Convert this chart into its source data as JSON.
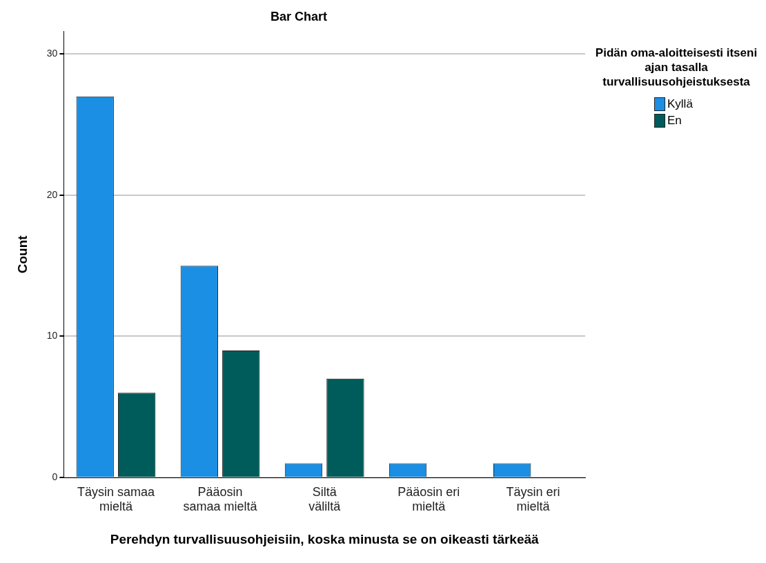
{
  "chart_data": {
    "type": "bar",
    "title": "Bar Chart",
    "xlabel": "Perehdyn turvallisuusohjeisiin, koska minusta se on oikeasti tärkeää",
    "ylabel": "Count",
    "legend_title": "Pidän oma-aloitteisesti itseni ajan tasalla turvallisuusohjeistuksesta",
    "categories": [
      "Täysin samaa mieltä",
      "Pääosin samaa mieltä",
      "Siltä väliltä",
      "Pääosin eri mieltä",
      "Täysin eri mieltä"
    ],
    "series": [
      {
        "name": "Kyllä",
        "color": "#1a8fe3",
        "values": [
          27,
          15,
          1,
          1,
          1
        ]
      },
      {
        "name": "En",
        "color": "#005c5a",
        "values": [
          6,
          9,
          7,
          0,
          0
        ]
      }
    ],
    "ylim": [
      0,
      31.6
    ],
    "yticks": [
      0,
      10,
      20,
      30
    ],
    "grid": "y",
    "legend": "top right"
  }
}
